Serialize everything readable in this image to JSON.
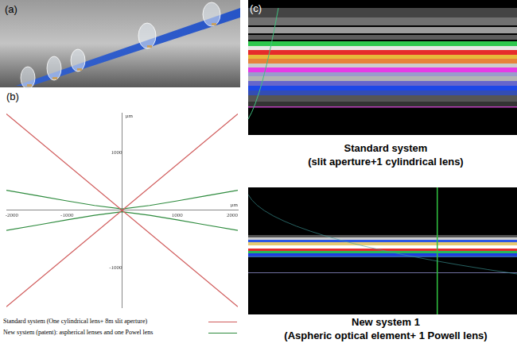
{
  "panels": {
    "a": {
      "label": "(a)"
    },
    "b": {
      "label": "(b)"
    },
    "c": {
      "label": "(c)",
      "images": [
        {
          "caption": [
            "Standard system",
            "(slit aperture+1 cylindrical lens)"
          ]
        },
        {
          "caption": [
            "New system 1",
            "(Aspheric optical element+ 1 Powell lens)"
          ]
        }
      ]
    }
  },
  "chart_data": {
    "type": "line",
    "x_label": "µm",
    "y_label": "µm",
    "xlim": [
      -2100,
      2100
    ],
    "ylim": [
      -1700,
      1700
    ],
    "xticks": [
      -2000,
      -1000,
      1000,
      2000
    ],
    "yticks": [
      -1000,
      1000
    ],
    "grid": false,
    "legend": "bottom",
    "series": [
      {
        "name": "Standard system (One cylindrical lens+ 8m slit aperture)",
        "color": "#d05a5a",
        "x": [
          -2100,
          2100
        ],
        "values": [
          -1680,
          1680
        ]
      },
      {
        "name": "Standard system (One cylindrical lens+ 8m slit aperture)",
        "color": "#d05a5a",
        "x": [
          -2100,
          2100
        ],
        "values": [
          1680,
          -1680
        ]
      },
      {
        "name": "New system (patent): aspherical lenses and one Powel lens",
        "color": "#2e8b3e",
        "x": [
          -2100,
          -1500,
          -1000,
          -500,
          0,
          500,
          1000,
          1500,
          2100
        ],
        "values": [
          350,
          250,
          165,
          85,
          25,
          85,
          165,
          250,
          350
        ]
      },
      {
        "name": "New system (patent): aspherical lenses and one Powel lens",
        "color": "#2e8b3e",
        "x": [
          -2100,
          -1500,
          -1000,
          -500,
          0,
          500,
          1000,
          1500,
          2100
        ],
        "values": [
          -350,
          -250,
          -165,
          -85,
          -25,
          -85,
          -165,
          -250,
          -350
        ]
      }
    ]
  }
}
